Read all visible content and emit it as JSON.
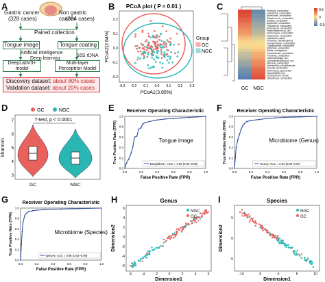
{
  "panels": {
    "A": {
      "label": "A",
      "gastric": "Gastric cancer",
      "gastric_cases": "(328 cases)",
      "nongastric": "Non gastric cancer",
      "nongastric_cases": "(304 cases)",
      "paired": "Paired collection",
      "tongue_image": "Tongue image",
      "tongue_coating": "Tongue coating",
      "ai": "Artificial intelligence",
      "deep": "Deep learning",
      "rdna": "16S rDNA",
      "deeplab": "DeepLabV3+",
      "deeplab2": "model",
      "mlp": "Multi-layer",
      "mlp2": "Perceptron Model",
      "discovery": "Discovery dataset:",
      "discovery_val": "about 80% cases",
      "validation": "Validation dataset:",
      "validation_val": "about 20% cases"
    },
    "B": {
      "label": "B",
      "title": "PCoA plot ( P = 0.01 )",
      "xlabel": "PCoA1(3.85%)",
      "ylabel": "PCoA2(2.64%)",
      "legend_title": "Group",
      "legend": [
        "GC",
        "NGC"
      ],
      "xticks": [
        "-0.3",
        "-0.2",
        "-0.1",
        "0.0",
        "0.1",
        "0.2",
        "0.3"
      ],
      "yticks": [
        "0.2",
        "0.1",
        "0.0",
        "-0.1",
        "-0.2"
      ]
    },
    "C": {
      "label": "C",
      "xlabels": [
        "GC",
        "NGC"
      ],
      "colorbar": [
        "0.5",
        "0",
        "-0.5"
      ],
      "taxa": [
        "Rikenella_unclassified",
        "Leptotrichia_unclassified",
        "Bacteroides_unclassified",
        "Streptococcus_unclassified",
        "Alistipes_unclassified",
        "Butyrivibrio_unclassified",
        "Phocaeicola_unclassified",
        "Actinomyces_unclassified",
        "Peptostreptococcus_unc.",
        "Selenomonas_unclassified",
        "Eubacterium_unclassified",
        "Leptotrichia_wadei",
        "Prevotella_melaninogenica",
        "Porphyromonas_unclassified",
        "Campylobacter_unclassified",
        "Veillonella_unclassified",
        "Rothia_mucilaginosa",
        "Fusobacterium_periodontic.",
        "Prevotella_unclassified",
        "Capnocytophaga_unc.",
        "Lachnoanaerobaculum_unc.",
        "Neisseria_unclassified",
        "Haemophilus_parainfluenzae",
        "Gemella_unclassified",
        "Actinomyces_graevenitzii",
        "Granulicatella_unc.",
        "Solobacterium_moorei",
        "Oribacterium_unclassified"
      ]
    },
    "D": {
      "label": "D",
      "legend": [
        "GC",
        "NGC"
      ],
      "test": "T-test, p < 0.0001",
      "ylabel": "Shannon",
      "xlabels": [
        "GC",
        "NGC"
      ],
      "yticks": [
        "7",
        "6",
        "5",
        "4",
        "3"
      ]
    },
    "E": {
      "label": "E",
      "title": "Receiver Operating Characteristic",
      "xlabel": "False Positive Rate (FPR)",
      "ylabel": "True Positive Rate (TPR)",
      "inset": "Tongue image",
      "legend": "DeeplabV3+: AUC = 0.89 (0.82~0.96)"
    },
    "F": {
      "label": "F",
      "title": "Receiver Operating Characteristic",
      "xlabel": "False Positive Rate (FPR)",
      "ylabel": "True Positive Rate (TPR)",
      "inset": "Microbiome (Genus)",
      "legend": "Genus: AUC = 0.94 (0.89~0.97)"
    },
    "G": {
      "label": "G",
      "title": "Receiver Operating Characteristic",
      "xlabel": "False Positive Rate (FPR)",
      "ylabel": "True Positive Rate (TPR)",
      "inset": "Microbiome (Species)",
      "legend": "species: AUC = 0.96 (0.91~0.99)"
    },
    "H": {
      "label": "H",
      "title": "Genus",
      "xlabel": "Dimension1",
      "ylabel": "Dimension2",
      "legend": [
        "NGC",
        "GC"
      ]
    },
    "I": {
      "label": "I",
      "title": "Species",
      "xlabel": "Dimension1",
      "ylabel": "Dimension2",
      "legend": [
        "NGC",
        "GC"
      ]
    }
  },
  "ticks": {
    "roc": [
      "0.0",
      "0.2",
      "0.4",
      "0.6",
      "0.8",
      "1.0"
    ],
    "h_x": [
      "-6",
      "-4",
      "-2",
      "0",
      "2",
      "4",
      "6"
    ],
    "h_y": [
      "6",
      "4",
      "2",
      "0",
      "-2",
      "-4",
      "-6"
    ],
    "i_x": [
      "-10",
      "-5",
      "0",
      "5",
      "10"
    ],
    "i_y": [
      "5",
      "0",
      "-5"
    ]
  },
  "colors": {
    "gc": "#e8615d",
    "ngc": "#2ab7b4",
    "roc": "#2c4fa3",
    "box_green": "#2e7d4f",
    "box_red": "#d23c3c"
  },
  "chart_data": [
    {
      "type": "line",
      "panel": "E",
      "title": "Receiver Operating Characteristic",
      "xlabel": "False Positive Rate (FPR)",
      "ylabel": "True Positive Rate (TPR)",
      "xlim": [
        0,
        1
      ],
      "ylim": [
        0,
        1
      ],
      "series": [
        {
          "name": "DeeplabV3+: AUC = 0.89 (0.82~0.96)",
          "x": [
            0,
            0.02,
            0.05,
            0.08,
            0.1,
            0.12,
            0.15,
            0.17,
            0.2,
            0.22,
            0.25,
            0.3,
            0.4,
            0.5,
            0.6,
            0.7,
            0.8,
            0.9,
            1.0
          ],
          "y": [
            0,
            0.1,
            0.18,
            0.3,
            0.42,
            0.6,
            0.62,
            0.75,
            0.78,
            0.85,
            0.88,
            0.9,
            0.93,
            0.95,
            0.96,
            0.97,
            0.98,
            0.99,
            1.0
          ]
        }
      ]
    },
    {
      "type": "line",
      "panel": "F",
      "title": "Receiver Operating Characteristic",
      "xlabel": "False Positive Rate (FPR)",
      "ylabel": "True Positive Rate (TPR)",
      "xlim": [
        0,
        1
      ],
      "ylim": [
        0,
        1
      ],
      "series": [
        {
          "name": "Genus: AUC = 0.94 (0.89~0.97)",
          "x": [
            0,
            0.01,
            0.02,
            0.04,
            0.06,
            0.08,
            0.1,
            0.12,
            0.15,
            0.2,
            0.3,
            0.4,
            0.5,
            0.6,
            0.8,
            1.0
          ],
          "y": [
            0,
            0.2,
            0.4,
            0.55,
            0.65,
            0.75,
            0.82,
            0.86,
            0.9,
            0.92,
            0.94,
            0.96,
            0.97,
            0.98,
            0.99,
            1.0
          ]
        }
      ]
    },
    {
      "type": "line",
      "panel": "G",
      "title": "Receiver Operating Characteristic",
      "xlabel": "False Positive Rate (FPR)",
      "ylabel": "True Positive Rate (TPR)",
      "xlim": [
        0,
        1
      ],
      "ylim": [
        0,
        1
      ],
      "series": [
        {
          "name": "species: AUC = 0.96 (0.91~0.99)",
          "x": [
            0,
            0.01,
            0.02,
            0.03,
            0.05,
            0.07,
            0.1,
            0.15,
            0.2,
            0.3,
            0.5,
            0.7,
            1.0
          ],
          "y": [
            0,
            0.3,
            0.55,
            0.72,
            0.85,
            0.9,
            0.93,
            0.95,
            0.96,
            0.97,
            0.98,
            0.99,
            1.0
          ]
        }
      ]
    }
  ]
}
